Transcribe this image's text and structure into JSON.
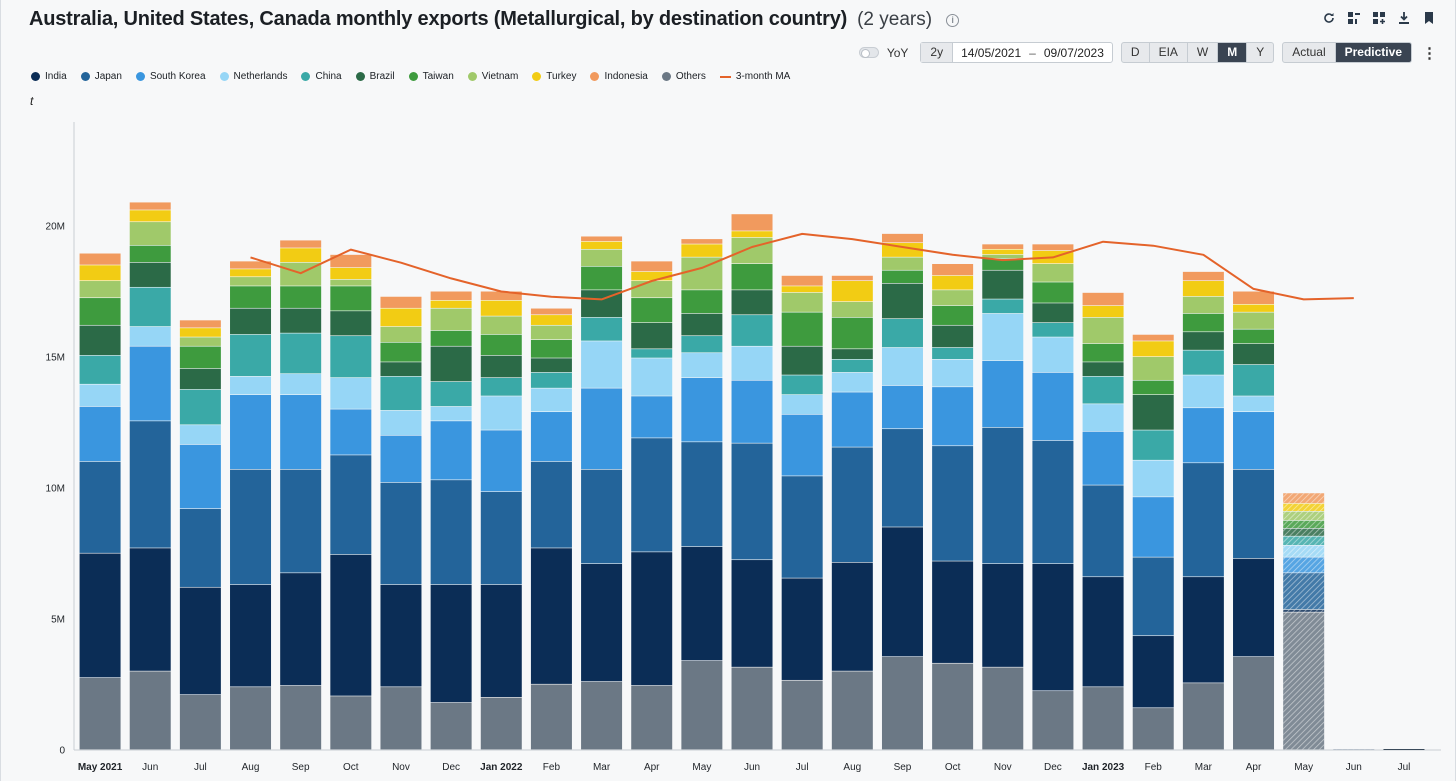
{
  "header": {
    "title": "Australia, United States, Canada monthly exports (Metallurgical, by destination country)",
    "subtitle": "(2 years)",
    "info": "i"
  },
  "controls": {
    "yoy_label": "YoY",
    "range_label": "2y",
    "date_start": "14/05/2021",
    "date_sep": "–",
    "date_end": "09/07/2023",
    "frequency": [
      "D",
      "EIA",
      "W",
      "M",
      "Y"
    ],
    "frequency_selected": "M",
    "mode": [
      "Actual",
      "Predictive"
    ],
    "mode_selected": "Predictive"
  },
  "chart_data": {
    "type": "bar",
    "stacked": true,
    "unit": "t",
    "y_ticks": [
      "0",
      "5M",
      "10M",
      "15M",
      "20M"
    ],
    "ylim": [
      0,
      23000000
    ],
    "grid": false,
    "legend_position": "top-left",
    "categories": [
      "May 2021",
      "Jun",
      "Jul",
      "Aug",
      "Sep",
      "Oct",
      "Nov",
      "Dec",
      "Jan 2022",
      "Feb",
      "Mar",
      "Apr",
      "May",
      "Jun",
      "Jul",
      "Aug",
      "Sep",
      "Oct",
      "Nov",
      "Dec",
      "Jan 2023",
      "Feb",
      "Mar",
      "Apr",
      "May",
      "Jun",
      "Jul"
    ],
    "bold_categories": [
      "May 2021",
      "Jan 2022",
      "Jan 2023"
    ],
    "predicted_categories": [
      "May",
      "Jun",
      "Jul"
    ],
    "series": [
      {
        "name": "Others",
        "color": "#6b7885",
        "values": [
          2.75,
          3.0,
          2.1,
          2.4,
          2.45,
          2.05,
          2.4,
          1.8,
          2.0,
          2.5,
          2.6,
          2.45,
          3.4,
          3.15,
          2.65,
          3.0,
          3.55,
          3.3,
          3.15,
          2.25,
          2.4,
          1.6,
          2.55,
          3.55,
          5.25,
          0.0,
          0.0
        ]
      },
      {
        "name": "India",
        "color": "#0b2d56",
        "values": [
          4.75,
          4.7,
          4.1,
          3.9,
          4.3,
          5.4,
          3.9,
          4.5,
          4.3,
          5.2,
          4.5,
          5.1,
          4.35,
          4.1,
          3.9,
          4.15,
          4.95,
          3.9,
          3.95,
          4.85,
          4.2,
          2.75,
          4.05,
          3.75,
          0.1,
          0.03,
          0.0
        ]
      },
      {
        "name": "Japan",
        "color": "#23649a",
        "values": [
          3.5,
          4.85,
          3.0,
          4.4,
          3.95,
          3.8,
          3.9,
          4.0,
          3.55,
          3.3,
          3.6,
          4.35,
          4.0,
          4.45,
          3.9,
          4.4,
          3.75,
          4.4,
          5.2,
          4.7,
          3.5,
          3.0,
          4.35,
          3.4,
          1.4,
          0.0,
          0.0
        ]
      },
      {
        "name": "South Korea",
        "color": "#3a96df",
        "values": [
          2.1,
          2.85,
          2.45,
          2.85,
          2.85,
          1.75,
          1.8,
          2.25,
          2.35,
          1.9,
          3.1,
          1.6,
          2.45,
          2.4,
          2.35,
          2.1,
          1.65,
          2.25,
          2.55,
          2.6,
          2.05,
          2.3,
          2.1,
          2.2,
          0.6,
          0.0,
          0.0
        ]
      },
      {
        "name": "Netherlands",
        "color": "#96d6f6",
        "values": [
          0.85,
          0.75,
          0.75,
          0.7,
          0.8,
          1.2,
          0.95,
          0.55,
          1.3,
          0.9,
          1.8,
          1.45,
          0.95,
          1.3,
          0.75,
          0.75,
          1.45,
          1.05,
          1.8,
          1.35,
          1.05,
          1.4,
          1.25,
          0.6,
          0.45,
          0.0,
          0.0
        ]
      },
      {
        "name": "China",
        "color": "#3aa9a7",
        "values": [
          1.1,
          1.5,
          1.35,
          1.6,
          1.55,
          1.6,
          1.3,
          0.95,
          0.7,
          0.6,
          0.9,
          0.35,
          0.65,
          1.2,
          0.75,
          0.5,
          1.1,
          0.45,
          0.55,
          0.55,
          1.05,
          1.15,
          0.95,
          1.2,
          0.35,
          0.0,
          0.0
        ]
      },
      {
        "name": "Brazil",
        "color": "#2b6a47",
        "values": [
          1.15,
          0.95,
          0.8,
          1.0,
          0.95,
          0.95,
          0.55,
          1.35,
          0.85,
          0.55,
          1.05,
          1.0,
          0.85,
          0.95,
          1.1,
          0.4,
          1.35,
          0.85,
          1.1,
          0.75,
          0.55,
          1.35,
          0.7,
          0.8,
          0.3,
          0.0,
          0.0
        ]
      },
      {
        "name": "Taiwan",
        "color": "#3e9b3e",
        "values": [
          1.05,
          0.65,
          0.85,
          0.85,
          0.85,
          0.95,
          0.75,
          0.6,
          0.8,
          0.7,
          0.9,
          0.95,
          0.9,
          1.0,
          1.3,
          1.2,
          0.5,
          0.75,
          0.45,
          0.8,
          0.7,
          0.55,
          0.7,
          0.55,
          0.3,
          0.0,
          0.0
        ]
      },
      {
        "name": "Vietnam",
        "color": "#a0c96a",
        "values": [
          0.65,
          0.9,
          0.35,
          0.35,
          0.9,
          0.25,
          0.6,
          0.85,
          0.7,
          0.55,
          0.65,
          0.65,
          1.25,
          1.0,
          0.75,
          0.6,
          0.5,
          0.6,
          0.15,
          0.7,
          1.0,
          0.9,
          0.65,
          0.65,
          0.35,
          0.0,
          0.0
        ]
      },
      {
        "name": "Turkey",
        "color": "#f2cc14",
        "values": [
          0.6,
          0.45,
          0.35,
          0.3,
          0.55,
          0.45,
          0.7,
          0.3,
          0.6,
          0.4,
          0.3,
          0.35,
          0.5,
          0.25,
          0.25,
          0.8,
          0.55,
          0.55,
          0.2,
          0.5,
          0.45,
          0.6,
          0.6,
          0.3,
          0.3,
          0.0,
          0.0
        ]
      },
      {
        "name": "Indonesia",
        "color": "#f19a5e",
        "values": [
          0.45,
          0.3,
          0.3,
          0.3,
          0.3,
          0.5,
          0.45,
          0.35,
          0.35,
          0.25,
          0.2,
          0.4,
          0.2,
          0.65,
          0.4,
          0.2,
          0.35,
          0.45,
          0.2,
          0.25,
          0.5,
          0.25,
          0.35,
          0.5,
          0.4,
          0.0,
          0.0
        ]
      }
    ],
    "ma_series": {
      "name": "3-month MA",
      "color": "#e4632a",
      "x_start_index": 3,
      "values": [
        18.8,
        18.2,
        19.1,
        18.6,
        18.0,
        17.5,
        17.3,
        17.2,
        17.9,
        18.4,
        19.2,
        19.7,
        19.5,
        19.2,
        18.9,
        18.7,
        18.8,
        19.4,
        19.25,
        18.9,
        17.6,
        17.2,
        17.25
      ]
    }
  },
  "legend_labels": [
    "India",
    "Japan",
    "South Korea",
    "Netherlands",
    "China",
    "Brazil",
    "Taiwan",
    "Vietnam",
    "Turkey",
    "Indonesia",
    "Others",
    "3-month MA"
  ]
}
